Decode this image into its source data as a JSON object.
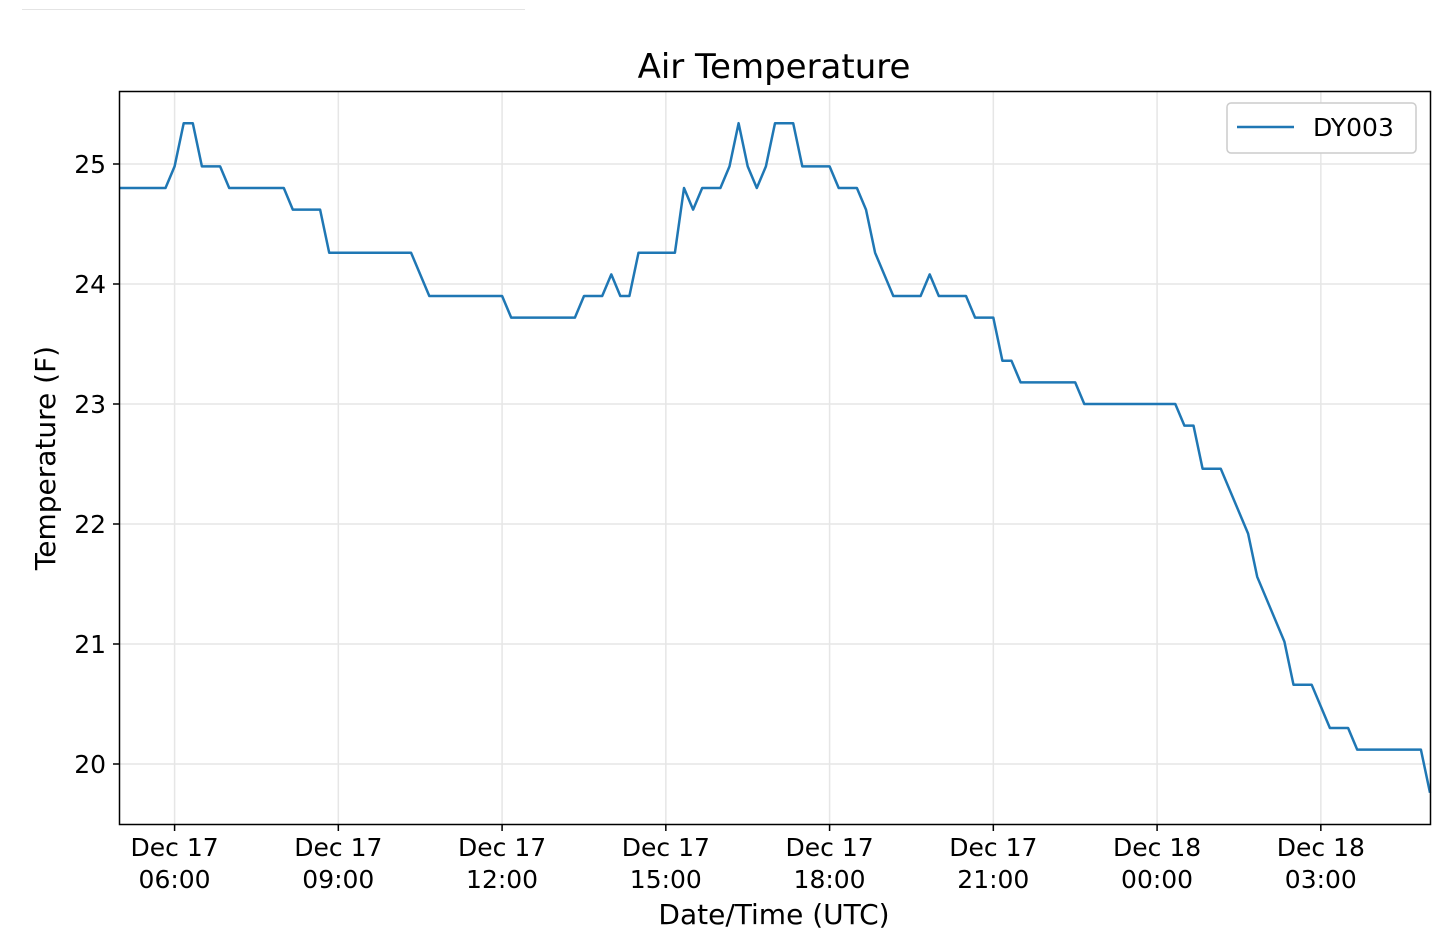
{
  "chart_data": {
    "type": "line",
    "title": "Air Temperature",
    "xlabel": "Date/Time (UTC)",
    "ylabel": "Temperature (F)",
    "xlim": [
      "2017-12-17 05:00",
      "2017-12-18 05:00"
    ],
    "ylim": [
      19.5,
      25.6
    ],
    "grid": true,
    "legend_position": "top-right",
    "x_ticks": [
      {
        "line1": "Dec 17",
        "line2": "06:00",
        "at": "2017-12-17 06:00"
      },
      {
        "line1": "Dec 17",
        "line2": "09:00",
        "at": "2017-12-17 09:00"
      },
      {
        "line1": "Dec 17",
        "line2": "12:00",
        "at": "2017-12-17 12:00"
      },
      {
        "line1": "Dec 17",
        "line2": "15:00",
        "at": "2017-12-17 15:00"
      },
      {
        "line1": "Dec 17",
        "line2": "18:00",
        "at": "2017-12-17 18:00"
      },
      {
        "line1": "Dec 17",
        "line2": "21:00",
        "at": "2017-12-17 21:00"
      },
      {
        "line1": "Dec 18",
        "line2": "00:00",
        "at": "2017-12-18 00:00"
      },
      {
        "line1": "Dec 18",
        "line2": "03:00",
        "at": "2017-12-18 03:00"
      }
    ],
    "y_ticks": [
      20,
      21,
      22,
      23,
      24,
      25
    ],
    "series": [
      {
        "name": "DY003",
        "color": "#1f77b4",
        "points": [
          [
            "2017-12-17 05:00",
            24.8
          ],
          [
            "2017-12-17 05:50",
            24.8
          ],
          [
            "2017-12-17 06:00",
            24.98
          ],
          [
            "2017-12-17 06:10",
            25.34
          ],
          [
            "2017-12-17 06:20",
            25.34
          ],
          [
            "2017-12-17 06:30",
            24.98
          ],
          [
            "2017-12-17 06:50",
            24.98
          ],
          [
            "2017-12-17 07:00",
            24.8
          ],
          [
            "2017-12-17 08:00",
            24.8
          ],
          [
            "2017-12-17 08:10",
            24.62
          ],
          [
            "2017-12-17 08:40",
            24.62
          ],
          [
            "2017-12-17 08:50",
            24.26
          ],
          [
            "2017-12-17 10:20",
            24.26
          ],
          [
            "2017-12-17 10:40",
            23.9
          ],
          [
            "2017-12-17 12:00",
            23.9
          ],
          [
            "2017-12-17 12:10",
            23.72
          ],
          [
            "2017-12-17 13:20",
            23.72
          ],
          [
            "2017-12-17 13:30",
            23.9
          ],
          [
            "2017-12-17 13:50",
            23.9
          ],
          [
            "2017-12-17 14:00",
            24.08
          ],
          [
            "2017-12-17 14:10",
            23.9
          ],
          [
            "2017-12-17 14:20",
            23.9
          ],
          [
            "2017-12-17 14:30",
            24.26
          ],
          [
            "2017-12-17 15:10",
            24.26
          ],
          [
            "2017-12-17 15:20",
            24.8
          ],
          [
            "2017-12-17 15:30",
            24.62
          ],
          [
            "2017-12-17 15:40",
            24.8
          ],
          [
            "2017-12-17 16:00",
            24.8
          ],
          [
            "2017-12-17 16:10",
            24.98
          ],
          [
            "2017-12-17 16:20",
            25.34
          ],
          [
            "2017-12-17 16:30",
            24.98
          ],
          [
            "2017-12-17 16:40",
            24.8
          ],
          [
            "2017-12-17 16:50",
            24.98
          ],
          [
            "2017-12-17 17:00",
            25.34
          ],
          [
            "2017-12-17 17:20",
            25.34
          ],
          [
            "2017-12-17 17:30",
            24.98
          ],
          [
            "2017-12-17 18:00",
            24.98
          ],
          [
            "2017-12-17 18:10",
            24.8
          ],
          [
            "2017-12-17 18:30",
            24.8
          ],
          [
            "2017-12-17 18:40",
            24.62
          ],
          [
            "2017-12-17 18:50",
            24.26
          ],
          [
            "2017-12-17 19:10",
            23.9
          ],
          [
            "2017-12-17 19:40",
            23.9
          ],
          [
            "2017-12-17 19:50",
            24.08
          ],
          [
            "2017-12-17 20:00",
            23.9
          ],
          [
            "2017-12-17 20:30",
            23.9
          ],
          [
            "2017-12-17 20:40",
            23.72
          ],
          [
            "2017-12-17 21:00",
            23.72
          ],
          [
            "2017-12-17 21:10",
            23.36
          ],
          [
            "2017-12-17 21:20",
            23.36
          ],
          [
            "2017-12-17 21:30",
            23.18
          ],
          [
            "2017-12-17 22:30",
            23.18
          ],
          [
            "2017-12-17 22:40",
            23.0
          ],
          [
            "2017-12-18 00:20",
            23.0
          ],
          [
            "2017-12-18 00:30",
            22.82
          ],
          [
            "2017-12-18 00:40",
            22.82
          ],
          [
            "2017-12-18 00:50",
            22.46
          ],
          [
            "2017-12-18 01:10",
            22.46
          ],
          [
            "2017-12-18 01:40",
            21.92
          ],
          [
            "2017-12-18 01:50",
            21.56
          ],
          [
            "2017-12-18 02:20",
            21.02
          ],
          [
            "2017-12-18 02:30",
            20.66
          ],
          [
            "2017-12-18 02:50",
            20.66
          ],
          [
            "2017-12-18 03:10",
            20.3
          ],
          [
            "2017-12-18 03:30",
            20.3
          ],
          [
            "2017-12-18 03:40",
            20.12
          ],
          [
            "2017-12-18 04:50",
            20.12
          ],
          [
            "2017-12-18 05:00",
            19.76
          ]
        ]
      }
    ]
  }
}
